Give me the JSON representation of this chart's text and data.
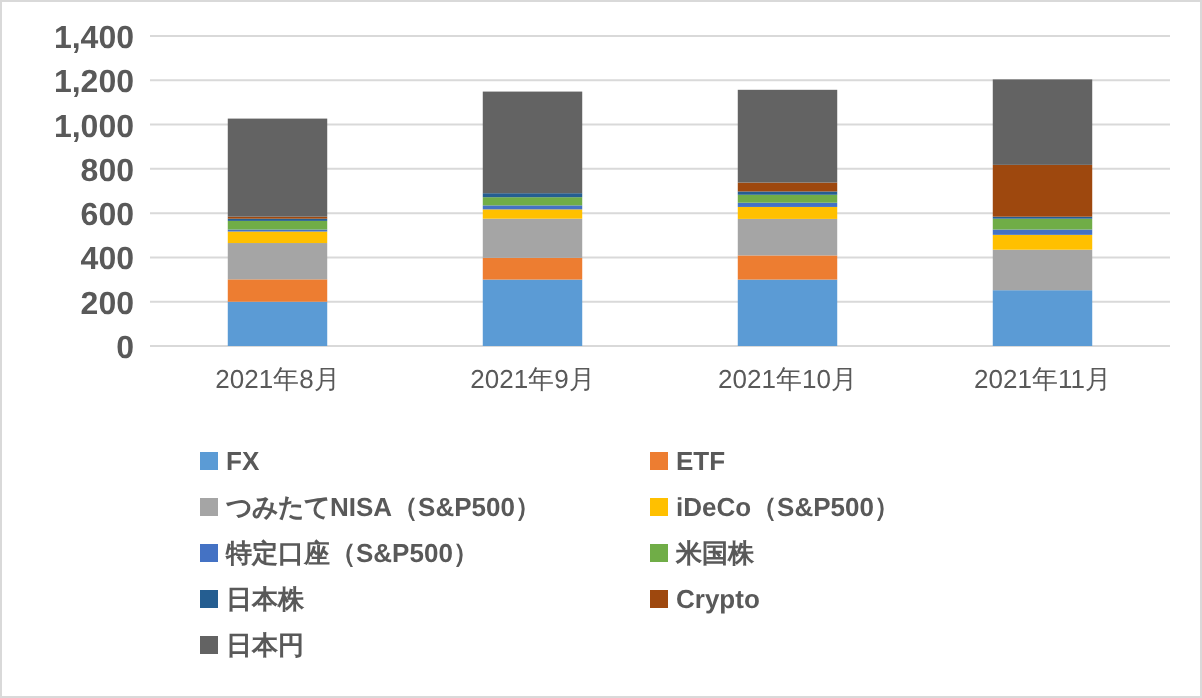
{
  "chart_data": {
    "type": "bar",
    "stacked": true,
    "categories": [
      "2021年8月",
      "2021年9月",
      "2021年10月",
      "2021年11月"
    ],
    "ylim": [
      0,
      1400
    ],
    "yticks": [
      {
        "value": 0,
        "label": "0"
      },
      {
        "value": 200,
        "label": "200"
      },
      {
        "value": 400,
        "label": "400"
      },
      {
        "value": 600,
        "label": "600"
      },
      {
        "value": 800,
        "label": "800"
      },
      {
        "value": 1000,
        "label": "1,000"
      },
      {
        "value": 1200,
        "label": "1,200"
      },
      {
        "value": 1400,
        "label": "1,400"
      }
    ],
    "grid": "y",
    "legend": "bottom",
    "series": [
      {
        "name": "FX",
        "color": "#5b9bd5",
        "values": [
          200,
          300,
          300,
          252
        ]
      },
      {
        "name": "ETF",
        "color": "#ed7d31",
        "values": [
          101,
          98,
          109,
          0
        ]
      },
      {
        "name": "つみたてNISA（S&P500）",
        "color": "#a5a5a5",
        "values": [
          164,
          177,
          165,
          183
        ]
      },
      {
        "name": "iDeCo（S&P500）",
        "color": "#ffc000",
        "values": [
          52,
          42,
          54,
          67
        ]
      },
      {
        "name": "特定口座（S&P500）",
        "color": "#4472c4",
        "values": [
          9,
          18,
          19,
          24
        ]
      },
      {
        "name": "米国株",
        "color": "#70ad47",
        "values": [
          39,
          37,
          36,
          49
        ]
      },
      {
        "name": "日本株",
        "color": "#255e91",
        "values": [
          10,
          18,
          15,
          9
        ]
      },
      {
        "name": "Crypto",
        "color": "#9e480e",
        "values": [
          9,
          0,
          40,
          234
        ]
      },
      {
        "name": "日本円",
        "color": "#636363",
        "values": [
          443,
          459,
          419,
          386
        ]
      }
    ]
  }
}
